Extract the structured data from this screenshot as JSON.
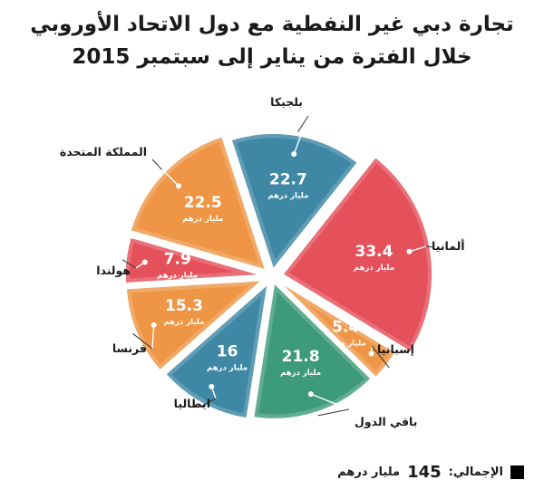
{
  "header": {
    "line1": "تجارة دبي غير النفطية مع دول الاتحاد الأوروبي",
    "line2": "خلال الفترة من يناير إلى سبتمبر  2015"
  },
  "chart_data": {
    "type": "pie",
    "unit_label": "مليار درهم",
    "categories": [
      "بلجيكا",
      "ألمانيا",
      "إسبانيا",
      "باقي الدول",
      "ايطاليا",
      "فرنسا",
      "هولندا",
      "المملكة المتحدة"
    ],
    "values": [
      22.7,
      33.4,
      5.4,
      21.8,
      16,
      15.3,
      7.9,
      22.5
    ],
    "value_labels": [
      "22.7",
      "33.4",
      "5.4",
      "21.8",
      "16",
      "15.3",
      "7.9",
      "22.5"
    ],
    "colors": [
      "#3e88a5",
      "#e5515b",
      "#ee9646",
      "#3d9b7b",
      "#3e88a5",
      "#ee9646",
      "#e5515b",
      "#ee9646"
    ]
  },
  "footer": {
    "total_label": "الإجمالي:",
    "total_value": "145",
    "total_unit": "مليار درهم"
  }
}
